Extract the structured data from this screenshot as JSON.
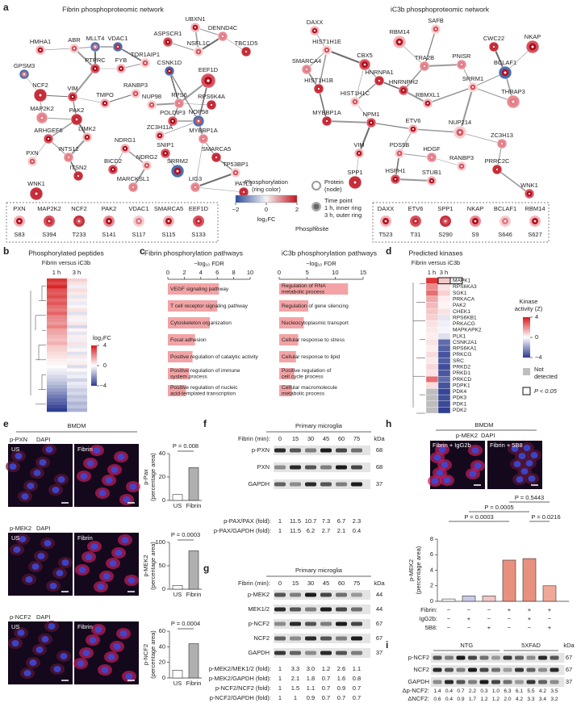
{
  "panel_a": {
    "label": "a",
    "left_title": "Fibrin phosphoproteomic network",
    "right_title": "iC3b phosphoproteomic network",
    "left_nodes": [
      "HMHA1",
      "ABR",
      "MLLT4",
      "VDAC1",
      "PTPRC",
      "FYB",
      "TOR1AIP1",
      "GPSM3",
      "NCF2",
      "VIM",
      "TMPO",
      "RANBP3",
      "MAP2K2",
      "PAK2",
      "ARHGEF6",
      "LIMK2",
      "PXN",
      "INTS12",
      "ITSN2",
      "BICD2",
      "NDRG1",
      "NDRG2",
      "MARCKSL1",
      "WNK1",
      "ASPSCR1",
      "UBXN1",
      "NSFL1C",
      "DENND4C",
      "TBC1D5",
      "EEF1D",
      "CSNK1D",
      "NUP98",
      "RPS6",
      "RPS6K4A",
      "POLDIP3",
      "ZC3H11A",
      "NOP58",
      "MYBBP1A",
      "SMARCA5",
      "SNIP1",
      "SRRM2",
      "TP53BP1",
      "LIG3",
      "PATL1"
    ],
    "right_nodes": [
      "DAXX",
      "HIST1H1E",
      "SMARCA4",
      "HIST1H1B",
      "CBX5",
      "RBM14",
      "SAFB",
      "TRA2B",
      "HNRNPA1",
      "HNRNPH2",
      "RBMXL1",
      "HIST1H1C",
      "PNISR",
      "CWC22",
      "NKAP",
      "BCLAF1",
      "SRRM1",
      "THRAP3",
      "MYBBP1A",
      "NPM1",
      "ETV6",
      "NUP214",
      "ZC3H13",
      "PRRC2C",
      "WNK1",
      "VIM",
      "PDS5B",
      "HDGF",
      "SPP1",
      "HSPH1",
      "STUB1",
      "RANBP3"
    ],
    "left_sites": {
      "proteins": [
        "PXN",
        "MAP2K2",
        "NCF2",
        "PAK2",
        "VDAC1",
        "SMARCA5",
        "EEF1D"
      ],
      "sites": [
        "S83",
        "S394",
        "T233",
        "S141",
        "S117",
        "S115",
        "S133"
      ]
    },
    "right_sites": {
      "proteins": [
        "DAXX",
        "ETV6",
        "SPP1",
        "NKAP",
        "BCLAF1",
        "RBM14"
      ],
      "sites": [
        "T523",
        "T31",
        "S290",
        "S9",
        "S646",
        "S627"
      ]
    },
    "legend": {
      "ring_title": [
        "Phosphorylation",
        "(ring color)"
      ],
      "colorbar_ticks": [
        {
          "value": -2,
          "label": "−2"
        },
        0,
        2
      ],
      "colorbar_label": "log₂FC",
      "node_title": [
        "Protein",
        "(node)"
      ],
      "time_title": "Time point",
      "inner": "1 h, inner ring",
      "outer": "3 h, outer ring",
      "site_label": "Phosphosite"
    }
  },
  "panel_b": {
    "label": "b",
    "title": "Phosphorylated peptides",
    "subtitle": "Fibrin versus iC3b",
    "columns": [
      "1 h",
      "3 h"
    ],
    "colorbar_label": "log₂FC",
    "colorbar_ticks": [
      4,
      0,
      {
        "value": -4,
        "label": "−4"
      }
    ],
    "values_1h": [
      3.5,
      3.2,
      3.8,
      3,
      2.8,
      3.1,
      2.6,
      2.9,
      2.5,
      2.3,
      2.7,
      2.1,
      2,
      1.8,
      2.2,
      1.6,
      1.5,
      1.3,
      1.1,
      1.4,
      0.9,
      0.8,
      0.6,
      0.5,
      0.3,
      0.2,
      0,
      -0.3,
      -0.5,
      -0.8,
      -1,
      -1.3,
      -1.6,
      -2,
      -2.3,
      -2.7,
      -3,
      -3.2,
      -3.6,
      -3.9
    ],
    "values_3h": [
      0.8,
      0.5,
      -0.3,
      0.6,
      0.4,
      -0.5,
      0.3,
      -0.4,
      0.2,
      0.5,
      -0.6,
      0.3,
      -0.2,
      0.4,
      -0.8,
      0.2,
      -0.5,
      0.3,
      -0.3,
      0.5,
      -0.4,
      0.2,
      -0.6,
      0.4,
      -0.2,
      0.3,
      -0.7,
      0.1,
      -0.5,
      -0.3,
      -0.9,
      -0.4,
      -0.6,
      -1,
      -0.8,
      -1.2,
      -1,
      -1.5,
      -1.2,
      -1.6
    ]
  },
  "panel_c": {
    "label": "c",
    "left": {
      "title": "Fibrin phosphorylation pathways",
      "axis_label": "−log₁₀ FDR",
      "xlim": [
        0,
        10
      ],
      "xticks": [
        0,
        2,
        4,
        6,
        8,
        10
      ],
      "pathways": [
        [
          "VEGF signaling pathway"
        ],
        [
          "T cell receptor signaling pathway"
        ],
        [
          "Cytoskeleton organization"
        ],
        [
          "Focal adhesion"
        ],
        [
          "Positive regulation of catalytic activity"
        ],
        [
          "Positive regulation of immune",
          "system process"
        ],
        [
          "Positive regulation of nucleic",
          "acid-templated transcription"
        ]
      ],
      "values": [
        6.2,
        6.0,
        5.1,
        3.3,
        3.0,
        2.6,
        2.2
      ]
    },
    "right": {
      "title": "iC3b phosphorylation pathways",
      "axis_label": "−log₁₀ FDR",
      "xlim": [
        0,
        15
      ],
      "xticks": [
        0,
        5,
        10,
        15
      ],
      "pathways": [
        [
          "Regulation of RNA",
          "metabolic process"
        ],
        [
          "Regulation of gene silencing"
        ],
        [
          "Nucleocytoplasmic transport"
        ],
        [
          "Cellular response to stress"
        ],
        [
          "Cellular response to lipid"
        ],
        [
          "Positive regulation of",
          "cell cycle process"
        ],
        [
          "Cellular macromolecule",
          "metabolic process"
        ]
      ],
      "values": [
        12.3,
        5.2,
        4.4,
        3.4,
        3.0,
        2.7,
        2.3
      ]
    }
  },
  "panel_d": {
    "label": "d",
    "title": "Predicted kinases",
    "subtitle": "Fibrin versus iC3b",
    "columns": [
      "1 h",
      "3 h"
    ],
    "kinases": [
      "MAPK1",
      "RPS6KA3",
      "SGK1",
      "PRKACA",
      "PAK2",
      "CHEK1",
      "RPS6KB1",
      "PRKACG",
      "MAPKAPK2",
      "PLK1",
      "CSNK2A1",
      "RPS6KA1",
      "PRKCG",
      "SRC",
      "PRKD2",
      "PRKD1",
      "PRKCD",
      "PDPK1",
      "PDK4",
      "PDK3",
      "PDK1",
      "PDK2"
    ],
    "z_1h": [
      3.5,
      2,
      2.5,
      1.5,
      1.2,
      1,
      0.8,
      0.5,
      0.4,
      0.3,
      0.5,
      0.3,
      0.6,
      0.4,
      0.7,
      0.5,
      2.5,
      0.6,
      null,
      null,
      null,
      null
    ],
    "z_3h": [
      1,
      0.5,
      0.8,
      0.3,
      0.2,
      0.5,
      -0.5,
      -0.3,
      -0.2,
      -0.6,
      -3,
      -3.2,
      -3.5,
      -3.3,
      -3.6,
      -3.4,
      -3,
      -3.5,
      -3.8,
      -3.6,
      -3.7,
      -3.9
    ],
    "legend_title": [
      "Kinase",
      "activity (Z)"
    ],
    "colorbar_ticks": [
      4,
      0,
      {
        "value": -4,
        "label": "−4"
      }
    ],
    "not_detected": [
      "Not",
      "detected"
    ],
    "significance": "P < 0.05"
  },
  "panel_e": {
    "label": "e",
    "header": "BMDM",
    "conditions": [
      "US",
      "Fibrin"
    ],
    "dapi": "DAPI",
    "rows": [
      {
        "stain": "p-PXN",
        "y_label": [
          "p-Pax",
          "(percentage area)"
        ],
        "p_value": "P = 0.008",
        "ylim": [
          0,
          40
        ],
        "yticks": [
          0,
          20,
          40
        ],
        "values": [
          5,
          28
        ]
      },
      {
        "stain": "p-MEK2",
        "y_label": [
          "p-MEK2",
          "(percentage area)"
        ],
        "p_value": "P = 0.0003",
        "ylim": [
          0,
          100
        ],
        "yticks": [
          0,
          50,
          100
        ],
        "values": [
          8,
          82
        ]
      },
      {
        "stain": "p-NCF2",
        "y_label": [
          "p-NCF2",
          "(percentage area)"
        ],
        "p_value": "P = 0.0004",
        "ylim": [
          0,
          60
        ],
        "yticks": [
          0,
          20,
          40,
          60
        ],
        "values": [
          10,
          44
        ]
      }
    ]
  },
  "panel_f": {
    "label": "f",
    "header": "Primary microglia",
    "time_label": "Fibrin (min):",
    "times": [
      0,
      15,
      30,
      45,
      60,
      75
    ],
    "kda_label": "kDa",
    "bands": [
      {
        "name": "p-PXN",
        "kda": 68
      },
      {
        "name": "PXN",
        "kda": 68
      },
      {
        "name": "GAPDH",
        "kda": 37
      }
    ],
    "ratios": [
      {
        "label": "p-PAX/PAX (fold):",
        "values": [
          "1",
          "11.5",
          "10.7",
          "7.3",
          "6.7",
          "2.3"
        ]
      },
      {
        "label": "p-PAX/GAPDH (fold):",
        "values": [
          "1",
          "11.5",
          "6.2",
          "2.7",
          "2.1",
          "0.4"
        ]
      }
    ]
  },
  "panel_g": {
    "label": "g",
    "header": "Primary microglia",
    "time_label": "Fibrin (min):",
    "times": [
      0,
      15,
      30,
      45,
      60,
      75
    ],
    "kda_label": "kDa",
    "bands": [
      {
        "name": "p-MEK2",
        "kda": 44
      },
      {
        "name": "MEK1/2",
        "kda": 44
      },
      {
        "name": "p-NCF2",
        "kda": 67
      },
      {
        "name": "NCF2",
        "kda": 67
      },
      {
        "name": "GAPDH",
        "kda": 37
      }
    ],
    "ratios": [
      {
        "label": "p-MEK2/MEK1/2 (fold):",
        "values": [
          "1",
          "3.3",
          "3.0",
          "1.2",
          "2.6",
          "1.1"
        ]
      },
      {
        "label": "p-MEK2/GAPDH (fold):",
        "values": [
          "1",
          "2.1",
          "1.8",
          "0.7",
          "1.6",
          "0.8"
        ]
      },
      {
        "label": "p-NCF2/NCF2 (fold):",
        "values": [
          "1",
          "1.5",
          "1.1",
          "0.7",
          "0.9",
          "0.7"
        ]
      },
      {
        "label": "p-NCF2/GAPDH (fold):",
        "values": [
          "1",
          "1",
          "0.9",
          "0.7",
          "0.7",
          "0.7"
        ]
      }
    ]
  },
  "panel_h": {
    "label": "h",
    "header": "BMDM",
    "stain": "p-MEK2",
    "dapi": "DAPI",
    "image_labels": [
      "Fibrin + IgG2b",
      "Fibrin + 5B8"
    ],
    "y_label": [
      "p-MEK2",
      "(percentage area)"
    ],
    "ylim": [
      0,
      8
    ],
    "yticks": [
      0,
      2,
      4,
      6,
      8
    ],
    "values": [
      0.3,
      0.7,
      0.7,
      5.3,
      5.5,
      2.0
    ],
    "p_values": [
      "P = 0.5443",
      "P = 0.0005",
      "P = 0.0003",
      "P = 0.0216"
    ],
    "conditions": [
      {
        "name": "Fibrin:",
        "signs": [
          "−",
          "−",
          "−",
          "+",
          "+",
          "+"
        ]
      },
      {
        "name": "IgG2b:",
        "signs": [
          "−",
          "+",
          "−",
          "−",
          "+",
          "−"
        ]
      },
      {
        "name": "5B8:",
        "signs": [
          "−",
          "−",
          "+",
          "−",
          "−",
          "+"
        ]
      }
    ]
  },
  "panel_i": {
    "label": "i",
    "groups": [
      "NTG",
      "5XFAD"
    ],
    "kda_label": "kDa",
    "bands": [
      {
        "name": "p-NCF2",
        "kda": 67
      },
      {
        "name": "NCF2",
        "kda": 67
      },
      {
        "name": "GAPDH",
        "kda": 37
      }
    ],
    "ratios": [
      {
        "label": "Δp-NCF2:",
        "values": [
          "1.4",
          "0.4",
          "0.7",
          "2.2",
          "0.3",
          "1.0",
          "6.3",
          "6.1",
          "5.5",
          "4.2",
          "3.5"
        ]
      },
      {
        "label": "ΔNCF2:",
        "values": [
          "0.6",
          "0.4",
          "0.9",
          "1.7",
          "1.2",
          "1.2",
          "2.0",
          "4.2",
          "3.3",
          "3.4",
          "3.2"
        ]
      }
    ]
  }
}
